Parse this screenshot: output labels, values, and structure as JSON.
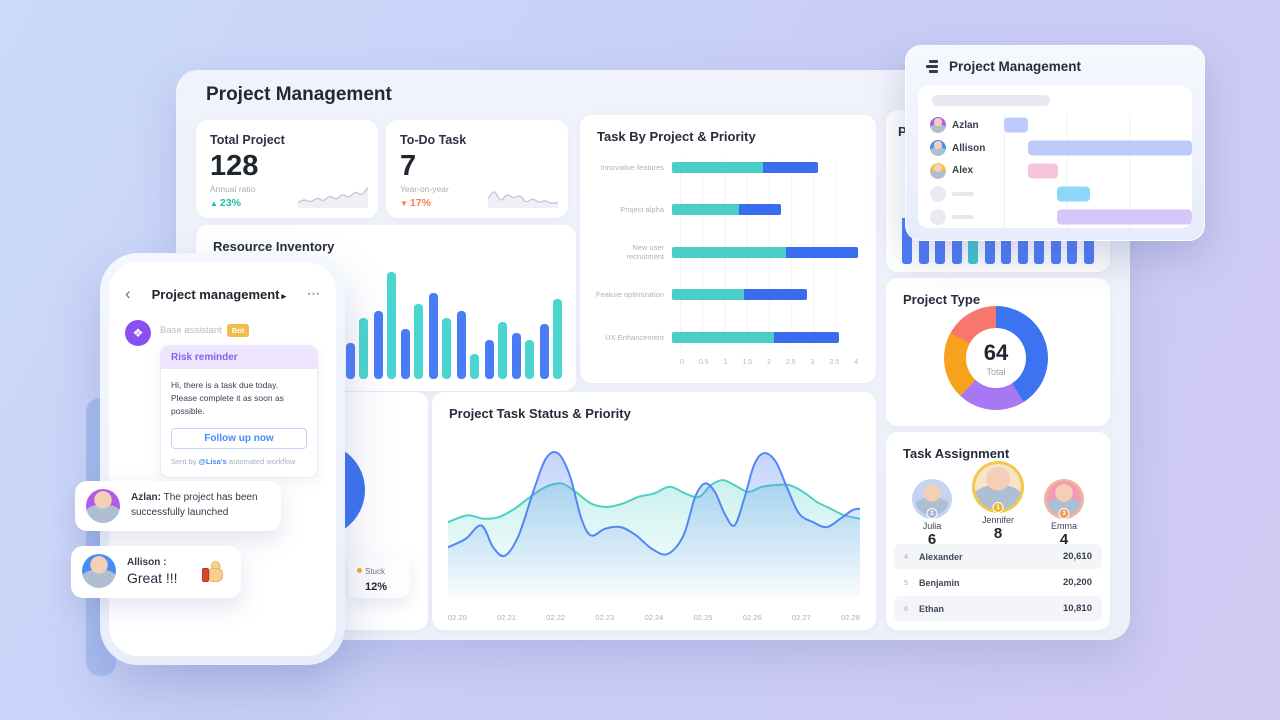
{
  "page_bg": {
    "from": "#cadaf9",
    "mid": "#c9cdf6",
    "to": "#d0c9f2"
  },
  "dashboard": {
    "title": "Project Management",
    "clipped_card_title": "P",
    "stat_cards": [
      {
        "label": "Total Project",
        "value": "128",
        "sub_label": "Annual ratio",
        "delta": "23%",
        "direction": "up",
        "delta_color": "#1cbfa6",
        "spark": [
          18,
          30,
          22,
          38,
          28,
          48,
          36,
          55,
          45,
          68,
          58,
          92
        ]
      },
      {
        "label": "To-Do Task",
        "value": "7",
        "sub_label": "Year-on-year",
        "delta": "17%",
        "direction": "down",
        "delta_color": "#fd7e4d",
        "spark": [
          38,
          70,
          30,
          55,
          42,
          50,
          22,
          34,
          20,
          26,
          14,
          18
        ]
      }
    ]
  },
  "chart_data": [
    {
      "id": "task_by_priority",
      "type": "bar",
      "orientation": "horizontal-stacked",
      "title": "Task By Project & Priority",
      "categories": [
        "Innovative features",
        "Project alpha",
        "New user recruitment",
        "Feature optimization",
        "UX Enhancement"
      ],
      "series": [
        {
          "name": "segment-teal",
          "color": "#49cfc7",
          "values": [
            1.95,
            1.45,
            2.45,
            1.55,
            2.2
          ]
        },
        {
          "name": "segment-blue",
          "color": "#3a6cf0",
          "values": [
            1.2,
            0.9,
            1.55,
            1.35,
            1.4
          ]
        }
      ],
      "xlim": [
        0,
        4
      ],
      "x_ticks": [
        "0",
        "0.5",
        "1",
        "1.5",
        "2",
        "2.5",
        "3",
        "3.5",
        "4"
      ],
      "grid": true,
      "legend": false
    },
    {
      "id": "resource_inventory",
      "type": "bar",
      "orientation": "vertical-grouped",
      "title": "Resource Inventory",
      "series": [
        {
          "name": "blue",
          "color": "#4a7bf7",
          "values": [
            33,
            62,
            45,
            78,
            62,
            35,
            42,
            50
          ]
        },
        {
          "name": "teal",
          "color": "#4ad5d1",
          "values": [
            55,
            97,
            68,
            55,
            23,
            52,
            35,
            73
          ]
        }
      ],
      "ylim": [
        0,
        100
      ],
      "note": "left portion occluded by phone mockup"
    },
    {
      "id": "status_priority",
      "type": "area",
      "title": "Project Task Status & Priority",
      "x_ticks": [
        "02.20",
        "02.21",
        "02.22",
        "02.23",
        "02.24",
        "02.25",
        "02.26",
        "02.27",
        "02.28"
      ],
      "ylim": [
        0,
        100
      ],
      "series": [
        {
          "name": "teal-series",
          "color": "#4ecfc6",
          "points": [
            [
              0,
              44
            ],
            [
              20,
              48
            ],
            [
              36,
              46
            ],
            [
              52,
              47
            ],
            [
              68,
              52
            ],
            [
              84,
              59
            ],
            [
              100,
              65
            ],
            [
              116,
              67
            ],
            [
              130,
              62
            ],
            [
              146,
              55
            ],
            [
              162,
              53
            ],
            [
              178,
              55
            ],
            [
              194,
              59
            ],
            [
              210,
              61
            ],
            [
              226,
              65
            ],
            [
              242,
              61
            ],
            [
              256,
              59
            ],
            [
              268,
              66
            ],
            [
              280,
              69
            ],
            [
              292,
              66
            ],
            [
              306,
              62
            ],
            [
              320,
              65
            ],
            [
              334,
              66
            ],
            [
              348,
              66
            ],
            [
              362,
              62
            ],
            [
              376,
              56
            ],
            [
              390,
              52
            ],
            [
              404,
              48
            ],
            [
              420,
              46
            ]
          ]
        },
        {
          "name": "blue-series",
          "color": "#5486f5",
          "points": [
            [
              0,
              29
            ],
            [
              18,
              34
            ],
            [
              34,
              42
            ],
            [
              46,
              29
            ],
            [
              58,
              24
            ],
            [
              72,
              36
            ],
            [
              88,
              64
            ],
            [
              100,
              82
            ],
            [
              112,
              85
            ],
            [
              124,
              72
            ],
            [
              136,
              46
            ],
            [
              146,
              36
            ],
            [
              160,
              40
            ],
            [
              176,
              41
            ],
            [
              192,
              36
            ],
            [
              208,
              28
            ],
            [
              224,
              25
            ],
            [
              240,
              36
            ],
            [
              252,
              59
            ],
            [
              262,
              67
            ],
            [
              272,
              62
            ],
            [
              282,
              49
            ],
            [
              292,
              42
            ],
            [
              302,
              58
            ],
            [
              312,
              78
            ],
            [
              322,
              85
            ],
            [
              334,
              80
            ],
            [
              346,
              64
            ],
            [
              358,
              49
            ],
            [
              372,
              44
            ],
            [
              386,
              41
            ],
            [
              400,
              46
            ],
            [
              412,
              51
            ],
            [
              420,
              52
            ]
          ]
        }
      ]
    },
    {
      "id": "project_type",
      "type": "pie",
      "title": "Project Type",
      "center_value": "64",
      "center_label": "Total",
      "segments": [
        {
          "color": "#3d73f0",
          "value": 41
        },
        {
          "color": "#a877f3",
          "value": 21
        },
        {
          "color": "#f6a21d",
          "value": 21
        },
        {
          "color": "#f8776d",
          "value": 17
        }
      ]
    },
    {
      "id": "stuck_pie",
      "type": "pie",
      "title": "",
      "slice_color": "#3b72f2",
      "tooltip": {
        "label": "Stuck",
        "value": "12%",
        "dot_color": "#f9a825"
      },
      "note": "card mostly occluded by phone mockup"
    },
    {
      "id": "gantt",
      "type": "table",
      "title": "Project Management",
      "rows": [
        {
          "name": "Azlan",
          "avatar_color": "#b15ce6",
          "bar": {
            "start": 0,
            "end": 0.125,
            "color": "#bdc9f9"
          }
        },
        {
          "name": "Allison",
          "avatar_color": "#4a8cf5",
          "bar": {
            "start": 0.125,
            "end": 1,
            "color": "#bdc9f9"
          }
        },
        {
          "name": "Alex",
          "avatar_color": "#f5c04a",
          "bar": {
            "start": 0.125,
            "end": 0.285,
            "color": "#f8c3dc"
          }
        },
        {
          "name": "",
          "avatar_color": "",
          "bar": {
            "start": 0.28,
            "end": 0.46,
            "color": "#8fd7f8"
          }
        },
        {
          "name": "",
          "avatar_color": "",
          "bar": {
            "start": 0.28,
            "end": 1,
            "color": "#d4c6f7"
          }
        }
      ]
    },
    {
      "id": "p_card_bars",
      "type": "bar",
      "title": "P",
      "values": [
        60,
        60,
        60,
        60,
        60,
        60,
        60,
        60,
        60,
        60,
        60,
        60
      ],
      "bar_color": "#4a7bf7",
      "teal_color": "#3ec7ce",
      "teal_index": 4,
      "note": "tops occluded by floating panel"
    }
  ],
  "panel": {
    "title": "Project Management"
  },
  "task_assignment": {
    "title": "Task Assignment",
    "featured": [
      {
        "name": "Julia",
        "count": "6",
        "rank_badge": "2",
        "ring": "#c5d4f4",
        "badge_color": "#a8b6d2",
        "bg": "#c6d4f2"
      },
      {
        "name": "Jennifer",
        "count": "8",
        "rank_badge": "1",
        "ring": "#f2c94c",
        "badge_color": "#f0b429",
        "bg": "#f6e3c8"
      },
      {
        "name": "Emma",
        "count": "4",
        "rank_badge": "3",
        "ring": "#f0b49e",
        "badge_color": "#f09a5a",
        "bg": "#f29ab5"
      }
    ],
    "rows": [
      {
        "rank": "4",
        "name": "Alexander",
        "value": "20,610"
      },
      {
        "rank": "5",
        "name": "Benjamin",
        "value": "20,200"
      },
      {
        "rank": "6",
        "name": "Ethan",
        "value": "10,810"
      }
    ]
  },
  "phone": {
    "back": "‹",
    "title": "Project management",
    "title_arrow": "▸",
    "menu": "⋯",
    "assistant_name": "Base assistant",
    "bot_badge": "Bot",
    "bot_avatar_color": "#8a4ff0",
    "reminder": {
      "header": "Risk reminder",
      "line1": "Hi, there is a task due today.",
      "line2": "Please complete it as soon as possible.",
      "button": "Follow up now",
      "footer_prefix": "Sent by ",
      "footer_link": "@Lisa's",
      "footer_suffix": " automated workflow"
    }
  },
  "bubbles": [
    {
      "speaker": "Azlan:",
      "text": " The project has been successfully launched",
      "avatar_color": "#b15ce6"
    },
    {
      "speaker": "Allison :",
      "text": "Great !!!",
      "avatar_color": "#4a8cf5",
      "emoji": "thumbs-up"
    }
  ]
}
